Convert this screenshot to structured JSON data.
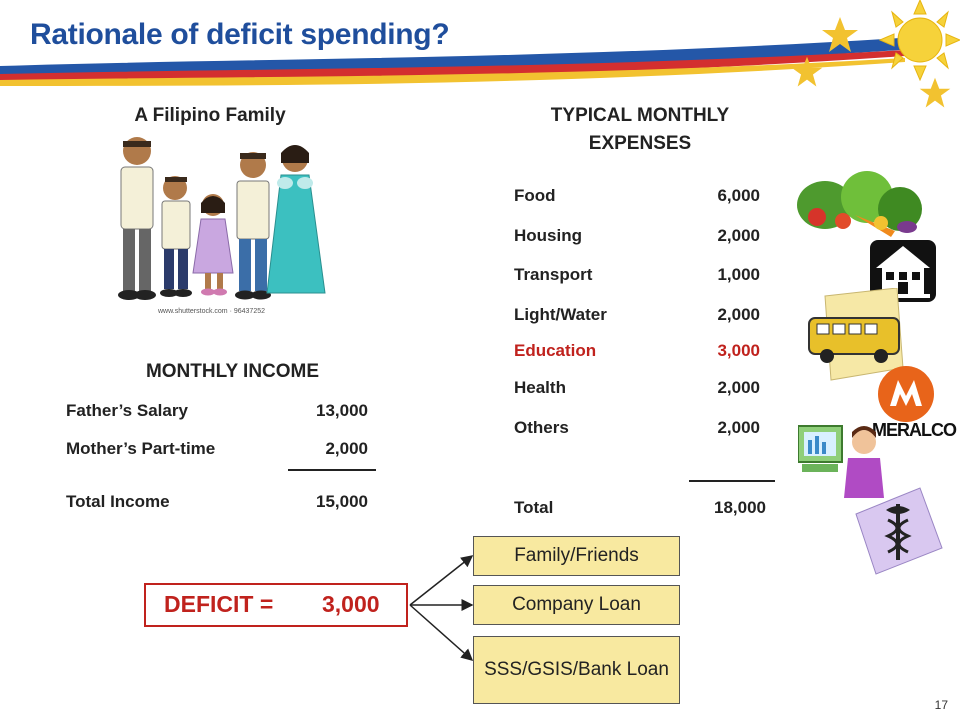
{
  "slide": {
    "title": "Rationale of deficit spending?",
    "page_number": "17"
  },
  "family": {
    "heading": "A Filipino Family",
    "credit": "www.shutterstock.com · 96437252"
  },
  "income": {
    "heading": "MONTHLY INCOME",
    "items": [
      {
        "label": "Father’s Salary",
        "value": "13,000"
      },
      {
        "label": "Mother’s Part-time",
        "value": "2,000"
      }
    ],
    "total_label": "Total Income",
    "total_value": "15,000"
  },
  "expenses": {
    "heading_line1": "TYPICAL MONTHLY",
    "heading_line2": "EXPENSES",
    "items": [
      {
        "label": "Food",
        "value": "6,000"
      },
      {
        "label": "Housing",
        "value": "2,000"
      },
      {
        "label": "Transport",
        "value": "1,000"
      },
      {
        "label": "Light/Water",
        "value": "2,000"
      },
      {
        "label": "Education",
        "value": "3,000"
      },
      {
        "label": "Health",
        "value": "2,000"
      },
      {
        "label": "Others",
        "value": "2,000"
      }
    ],
    "total_label": "Total",
    "total_value": "18,000",
    "highlight_color": "#c0221d"
  },
  "deficit": {
    "label": "DEFICIT =",
    "value": "3,000",
    "color": "#c0221d"
  },
  "options": [
    {
      "label": "Family/Friends"
    },
    {
      "label": "Company Loan"
    },
    {
      "label": "SSS/GSIS/Bank Loan"
    }
  ],
  "icons": {
    "electricity_logo_text": "MERALCO"
  },
  "colors": {
    "title": "#1f4e9c",
    "option_fill": "#f8e9a0"
  }
}
